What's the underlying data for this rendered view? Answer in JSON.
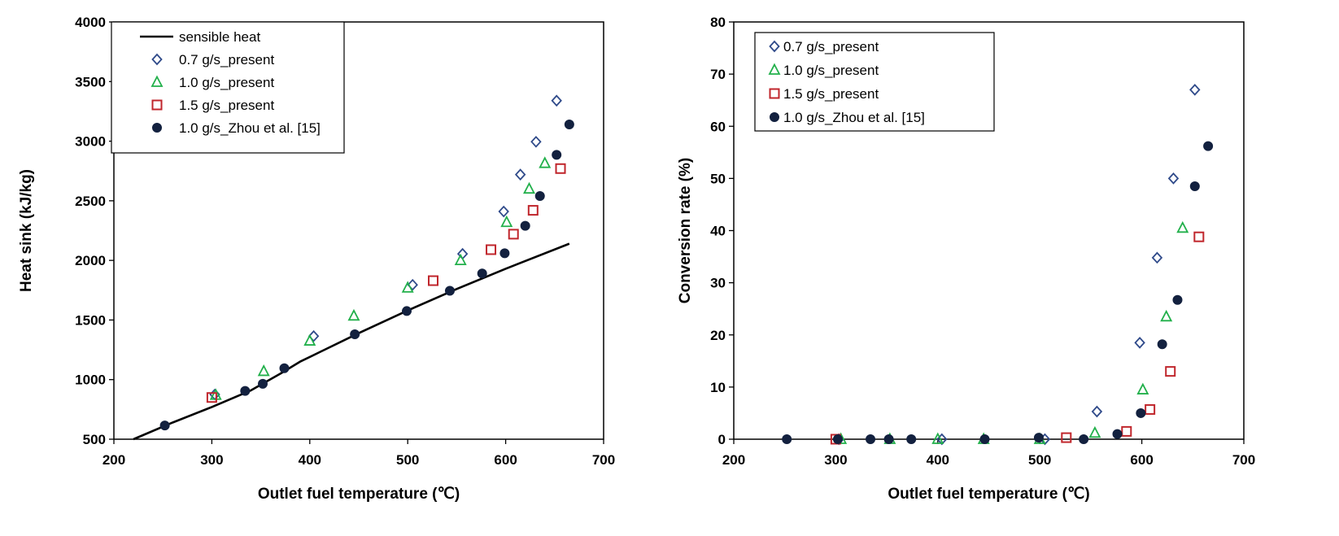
{
  "colors": {
    "diamond": "#2f4a8a",
    "triangle": "#22b04b",
    "square": "#c0262c",
    "circle": "#13213f",
    "line": "#000000"
  },
  "chart_data": [
    {
      "type": "scatter",
      "title": "",
      "xlabel": "Outlet fuel temperature (℃)",
      "ylabel": "Heat sink (kJ/kg)",
      "xlim": [
        200,
        700
      ],
      "ylim": [
        500,
        4000
      ],
      "xticks": [
        "200",
        "300",
        "400",
        "500",
        "600",
        "700"
      ],
      "yticks": [
        "500",
        "1000",
        "1500",
        "2000",
        "2500",
        "3000",
        "3500",
        "4000"
      ],
      "grid": false,
      "legend_position": "top-left",
      "series": [
        {
          "name": "sensible heat",
          "marker": "line",
          "x": [
            220,
            260,
            300,
            340,
            370,
            390,
            410,
            450,
            500,
            550,
            600,
            665
          ],
          "y": [
            500,
            640,
            770,
            910,
            1050,
            1150,
            1230,
            1390,
            1580,
            1760,
            1930,
            2140
          ]
        },
        {
          "name": "0.7 g/s_present",
          "marker": "diamond",
          "x": [
            303,
            404,
            505,
            556,
            598,
            615,
            631,
            652
          ],
          "y": [
            875,
            1365,
            1795,
            2055,
            2410,
            2720,
            2995,
            3340
          ]
        },
        {
          "name": "1.0 g/s_present",
          "marker": "triangle",
          "x": [
            304,
            353,
            400,
            445,
            500,
            554,
            601,
            624,
            640
          ],
          "y": [
            870,
            1070,
            1325,
            1535,
            1770,
            2000,
            2320,
            2600,
            2815
          ]
        },
        {
          "name": "1.5 g/s_present",
          "marker": "square",
          "x": [
            300,
            526,
            585,
            608,
            628,
            656
          ],
          "y": [
            850,
            1830,
            2090,
            2220,
            2420,
            2770
          ]
        },
        {
          "name": "1.0 g/s_Zhou et al. [15]",
          "marker": "circle",
          "x": [
            252,
            334,
            352,
            374,
            446,
            499,
            543,
            576,
            599,
            620,
            635,
            652,
            665
          ],
          "y": [
            615,
            905,
            965,
            1095,
            1380,
            1575,
            1745,
            1890,
            2060,
            2290,
            2540,
            2885,
            3140
          ]
        }
      ]
    },
    {
      "type": "scatter",
      "title": "",
      "xlabel": "Outlet fuel temperature (℃)",
      "ylabel": "Conversion rate (%)",
      "xlim": [
        200,
        700
      ],
      "ylim": [
        0,
        80
      ],
      "xticks": [
        "200",
        "300",
        "400",
        "500",
        "600",
        "700"
      ],
      "yticks": [
        "0",
        "10",
        "20",
        "30",
        "40",
        "50",
        "60",
        "70",
        "80"
      ],
      "grid": false,
      "legend_position": "top-left",
      "series": [
        {
          "name": "0.7 g/s_present",
          "marker": "diamond",
          "x": [
            303,
            404,
            505,
            556,
            598,
            615,
            631,
            652
          ],
          "y": [
            0,
            0,
            0,
            5.3,
            18.5,
            34.8,
            50,
            67
          ]
        },
        {
          "name": "1.0 g/s_present",
          "marker": "triangle",
          "x": [
            305,
            353,
            400,
            445,
            500,
            554,
            601,
            624,
            640
          ],
          "y": [
            0,
            0,
            0,
            0,
            0,
            1.2,
            9.5,
            23.5,
            40.5
          ]
        },
        {
          "name": "1.5 g/s_present",
          "marker": "square",
          "x": [
            300,
            526,
            585,
            608,
            628,
            656
          ],
          "y": [
            0,
            0.3,
            1.5,
            5.7,
            13,
            38.8
          ]
        },
        {
          "name": "1.0 g/s_Zhou et al. [15]",
          "marker": "circle",
          "x": [
            252,
            302,
            334,
            352,
            374,
            446,
            499,
            543,
            576,
            599,
            620,
            635,
            652,
            665
          ],
          "y": [
            0,
            0,
            0,
            0,
            0,
            0,
            0.3,
            0,
            1.0,
            5.0,
            18.2,
            26.7,
            48.5,
            56.2
          ]
        }
      ]
    }
  ]
}
